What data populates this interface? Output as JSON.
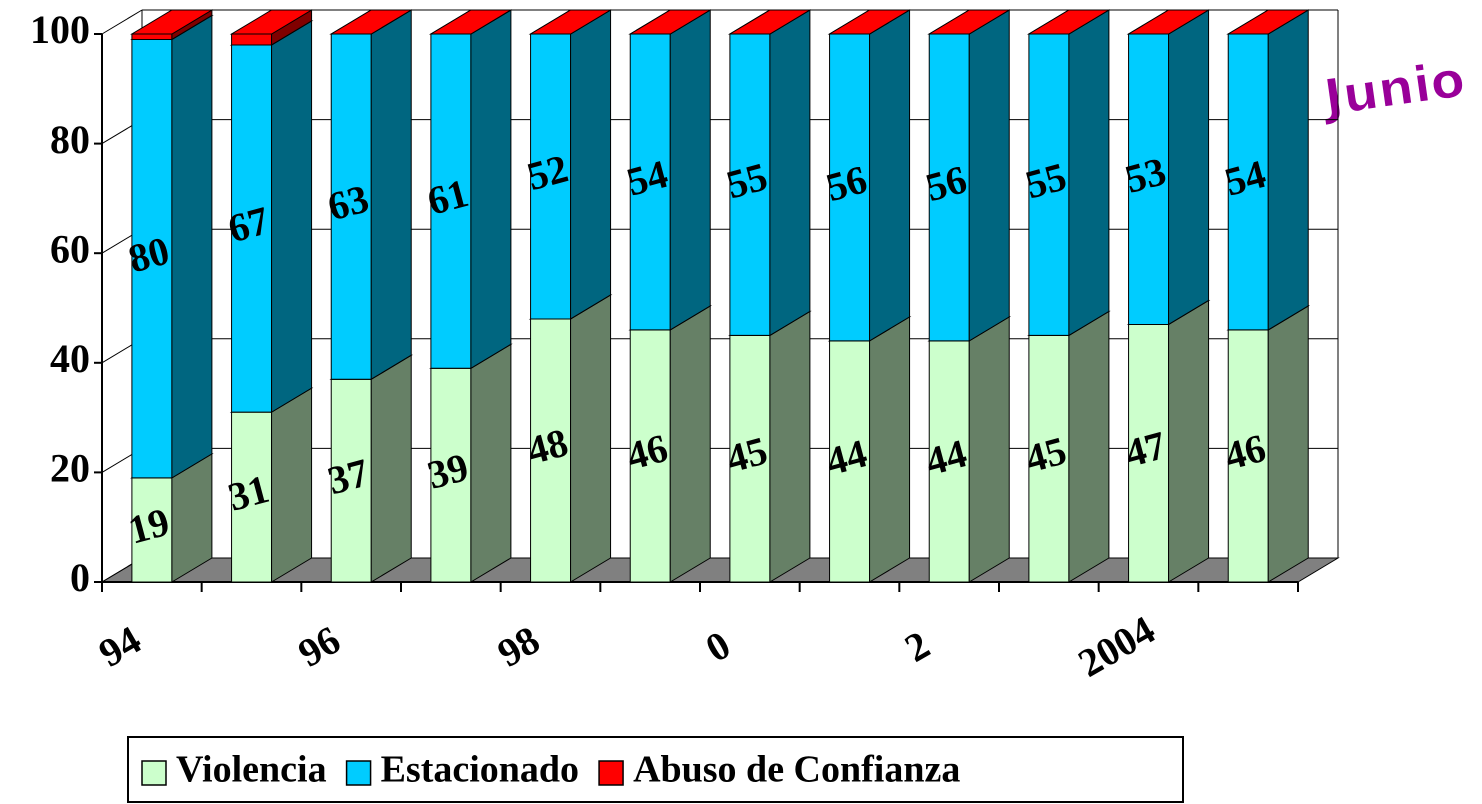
{
  "chart_data": {
    "type": "bar3d_stacked",
    "annotation": "Junio",
    "categories": [
      "94",
      null,
      "96",
      null,
      "98",
      null,
      "0",
      null,
      "2",
      null,
      "2004",
      null
    ],
    "series": [
      {
        "name": "Violencia",
        "color": "#ccffcc",
        "side_color": "#668066",
        "data_labels": true,
        "values": [
          19,
          31,
          37,
          39,
          48,
          46,
          45,
          44,
          44,
          45,
          47,
          46
        ]
      },
      {
        "name": "Estacionado",
        "color": "#00ccff",
        "side_color": "#006680",
        "data_labels": true,
        "values": [
          80,
          67,
          63,
          61,
          52,
          54,
          55,
          56,
          56,
          55,
          53,
          54
        ]
      },
      {
        "name": "Abuso de Confianza",
        "color": "#ff0000",
        "side_color": "#800000",
        "data_labels": false,
        "values": [
          1,
          2,
          0,
          0,
          0,
          0,
          0,
          0,
          0,
          0,
          0,
          0
        ]
      }
    ],
    "ylim": [
      0,
      100
    ],
    "yticks": [
      0,
      20,
      40,
      60,
      80,
      100
    ],
    "grid": true,
    "legend": "bottom"
  }
}
